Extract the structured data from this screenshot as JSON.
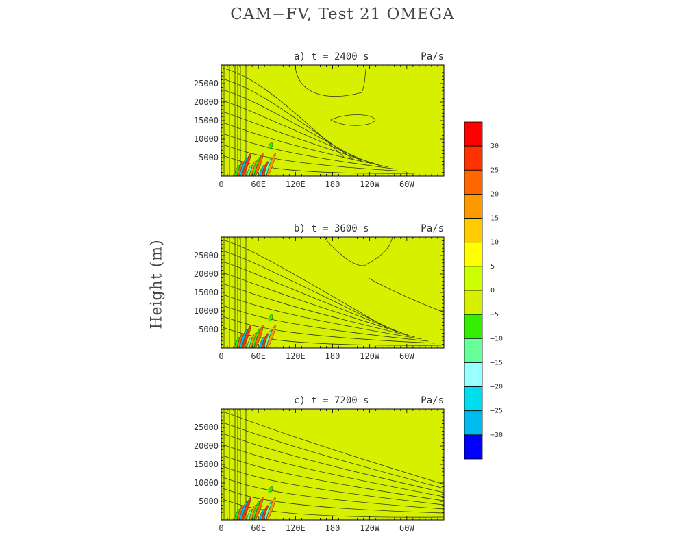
{
  "title": "CAM−FV, Test 21 OMEGA",
  "ylabel": "Height (m)",
  "colors": {
    "field": "#d7f000",
    "contour": "#2d3d1a",
    "frame": "#000000"
  },
  "chart_data": [
    {
      "type": "heatmap",
      "panel_title": "a) t = 2400 s",
      "units": "Pa/s",
      "xlabel": "",
      "ylabel": "Height (m)",
      "x_ticks": [
        "0",
        "60E",
        "120E",
        "180",
        "120W",
        "60W"
      ],
      "x_tick_values": [
        0,
        60,
        120,
        180,
        240,
        300
      ],
      "xlim": [
        0,
        360
      ],
      "y_ticks": [
        5000,
        10000,
        15000,
        20000,
        25000
      ],
      "ylim": [
        0,
        30000
      ]
    },
    {
      "type": "heatmap",
      "panel_title": "b) t = 3600 s",
      "units": "Pa/s",
      "xlabel": "",
      "ylabel": "Height (m)",
      "x_ticks": [
        "0",
        "60E",
        "120E",
        "180",
        "120W",
        "60W"
      ],
      "x_tick_values": [
        0,
        60,
        120,
        180,
        240,
        300
      ],
      "xlim": [
        0,
        360
      ],
      "y_ticks": [
        5000,
        10000,
        15000,
        20000,
        25000
      ],
      "ylim": [
        0,
        30000
      ]
    },
    {
      "type": "heatmap",
      "panel_title": "c) t = 7200 s",
      "units": "Pa/s",
      "xlabel": "",
      "ylabel": "Height (m)",
      "x_ticks": [
        "0",
        "60E",
        "120E",
        "180",
        "120W",
        "60W"
      ],
      "x_tick_values": [
        0,
        60,
        120,
        180,
        240,
        300
      ],
      "xlim": [
        0,
        360
      ],
      "y_ticks": [
        5000,
        10000,
        15000,
        20000,
        25000
      ],
      "ylim": [
        0,
        30000
      ]
    }
  ],
  "colorbar": {
    "labels": [
      "30",
      "25",
      "20",
      "15",
      "10",
      "5",
      "0",
      "−5",
      "−10",
      "−15",
      "−20",
      "−25",
      "−30"
    ],
    "colors": [
      "#ff0000",
      "#ff3300",
      "#ff6600",
      "#ff9900",
      "#ffcc00",
      "#ffff00",
      "#ccff00",
      "#d7f000",
      "#33ee00",
      "#66ff99",
      "#99ffff",
      "#00ddee",
      "#00bbee",
      "#0000ff"
    ]
  }
}
